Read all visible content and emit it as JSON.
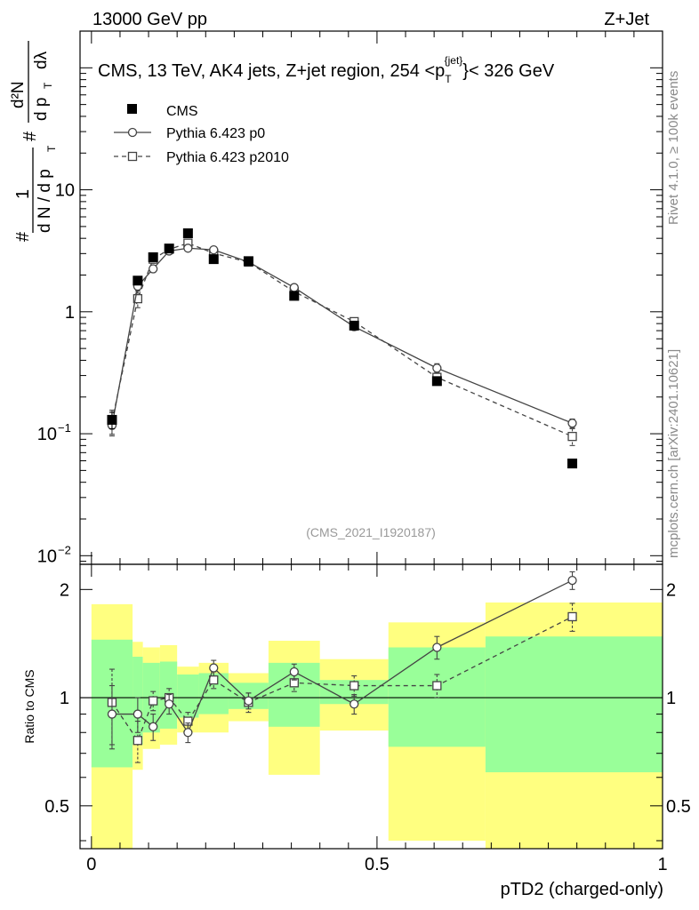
{
  "header": {
    "energy_label": "13000 GeV pp",
    "process_label": "Z+Jet"
  },
  "side_labels": {
    "rivet": "Rivet 4.1.0, ≥ 100k events",
    "source": "mcplots.cern.ch [arXiv:2401.10621]"
  },
  "chart_data": [
    {
      "type": "line",
      "panel": "main",
      "title": "CMS, 13 TeV, AK4 jets, Z+jet region, 254 <p_T^{jet}< 326 GeV",
      "title_parts": {
        "prefix": "CMS, 13 TeV, AK4 jets, Z+jet region, 254 <p",
        "sub": "T",
        "sup": "{jet}",
        "suffix": "}< 326 GeV"
      },
      "analysis_id": "(CMS_2021_I1920187)",
      "ylabel": "1/dN/dp_T  d²N/dp_T dλ",
      "ylabel_parts": {
        "hash": "#",
        "one": "1",
        "dn": "d N / d p",
        "t": "T",
        "d2n": "d²N",
        "dpt": "d p",
        "dl": "dλ"
      },
      "yscale": "log",
      "ylim": [
        0.0085,
        200
      ],
      "xlim": [
        -0.02,
        1.0
      ],
      "y_tick_labels": [
        {
          "value": 10,
          "label": "10"
        },
        {
          "value": 1,
          "label": "1"
        },
        {
          "value": 0.1,
          "base": "10",
          "exp": "−1"
        },
        {
          "value": 0.01,
          "base": "10",
          "exp": "−2"
        }
      ],
      "legend": {
        "placement": "top-left",
        "entries": [
          "CMS",
          "Pythia 6.423 p0",
          "Pythia 6.423 p2010"
        ]
      },
      "series": [
        {
          "name": "CMS",
          "style": "black-square",
          "x": [
            0.036,
            0.081,
            0.108,
            0.136,
            0.169,
            0.214,
            0.275,
            0.355,
            0.46,
            0.605,
            0.842
          ],
          "y": [
            0.13,
            1.8,
            2.8,
            3.3,
            4.4,
            2.7,
            2.6,
            1.35,
            0.77,
            0.27,
            0.057
          ],
          "yerr": [
            0.02,
            0.1,
            0.15,
            0.15,
            0.2,
            0.12,
            0.1,
            0.06,
            0.04,
            0.015,
            0.004
          ]
        },
        {
          "name": "Pythia 6.423 p0",
          "style": "solid-circle",
          "x": [
            0.036,
            0.081,
            0.108,
            0.136,
            0.169,
            0.214,
            0.275,
            0.355,
            0.46,
            0.605,
            0.842
          ],
          "y": [
            0.117,
            1.62,
            2.25,
            3.15,
            3.32,
            3.22,
            2.56,
            1.58,
            0.755,
            0.345,
            0.122
          ],
          "yerr": [
            0.018,
            0.2,
            0.15,
            0.2,
            0.15,
            0.15,
            0.1,
            0.08,
            0.05,
            0.03,
            0.01
          ]
        },
        {
          "name": "Pythia 6.423 p2010",
          "style": "dashed-square",
          "x": [
            0.036,
            0.081,
            0.108,
            0.136,
            0.169,
            0.214,
            0.275,
            0.355,
            0.46,
            0.605,
            0.842
          ],
          "y": [
            0.126,
            1.28,
            2.7,
            3.25,
            3.65,
            3.02,
            2.55,
            1.46,
            0.83,
            0.29,
            0.095
          ],
          "yerr": [
            0.03,
            0.2,
            0.2,
            0.2,
            0.2,
            0.15,
            0.12,
            0.08,
            0.06,
            0.03,
            0.015
          ]
        }
      ]
    },
    {
      "type": "line",
      "panel": "ratio",
      "xlabel": "pTD2 (charged-only)",
      "ylabel": "Ratio to CMS",
      "yscale": "log",
      "ylim": [
        0.38,
        2.35
      ],
      "xlim": [
        -0.02,
        1.0
      ],
      "x_tick_labels": [
        {
          "value": 0,
          "label": "0"
        },
        {
          "value": 0.5,
          "label": "0.5"
        },
        {
          "value": 1,
          "label": "1"
        }
      ],
      "y_tick_labels": [
        {
          "value": 2,
          "label": "2"
        },
        {
          "value": 1,
          "label": "1"
        },
        {
          "value": 0.5,
          "label": "0.5"
        }
      ],
      "uncertainty_bands": [
        {
          "x0": 0.0,
          "x1": 0.072,
          "inner": [
            0.64,
            1.45
          ],
          "outer": [
            0.36,
            1.82
          ]
        },
        {
          "x0": 0.072,
          "x1": 0.09,
          "inner": [
            0.74,
            1.3
          ],
          "outer": [
            0.63,
            1.43
          ]
        },
        {
          "x0": 0.09,
          "x1": 0.12,
          "inner": [
            0.8,
            1.25
          ],
          "outer": [
            0.72,
            1.38
          ]
        },
        {
          "x0": 0.12,
          "x1": 0.15,
          "inner": [
            0.82,
            1.26
          ],
          "outer": [
            0.74,
            1.4
          ]
        },
        {
          "x0": 0.15,
          "x1": 0.188,
          "inner": [
            0.88,
            1.16
          ],
          "outer": [
            0.8,
            1.22
          ]
        },
        {
          "x0": 0.188,
          "x1": 0.24,
          "inner": [
            0.9,
            1.17
          ],
          "outer": [
            0.8,
            1.25
          ]
        },
        {
          "x0": 0.24,
          "x1": 0.31,
          "inner": [
            0.93,
            1.1
          ],
          "outer": [
            0.86,
            1.17
          ]
        },
        {
          "x0": 0.31,
          "x1": 0.4,
          "inner": [
            0.83,
            1.25
          ],
          "outer": [
            0.61,
            1.44
          ]
        },
        {
          "x0": 0.4,
          "x1": 0.52,
          "inner": [
            0.96,
            1.12
          ],
          "outer": [
            0.81,
            1.28
          ]
        },
        {
          "x0": 0.52,
          "x1": 0.69,
          "inner": [
            0.73,
            1.38
          ],
          "outer": [
            0.4,
            1.62
          ]
        },
        {
          "x0": 0.69,
          "x1": 1.0,
          "inner": [
            0.62,
            1.48
          ],
          "outer": [
            0.36,
            1.84
          ]
        }
      ],
      "reference_line": 1,
      "series": [
        {
          "name": "Pythia 6.423 p0",
          "style": "solid-circle",
          "x": [
            0.036,
            0.081,
            0.108,
            0.136,
            0.169,
            0.214,
            0.275,
            0.355,
            0.46,
            0.605,
            0.842
          ],
          "y": [
            0.9,
            0.9,
            0.83,
            0.96,
            0.8,
            1.21,
            0.98,
            1.18,
            0.96,
            1.38,
            2.12
          ],
          "yerr": [
            0.18,
            0.1,
            0.07,
            0.06,
            0.05,
            0.06,
            0.05,
            0.06,
            0.06,
            0.1,
            0.12
          ]
        },
        {
          "name": "Pythia 6.423 p2010",
          "style": "dashed-square",
          "x": [
            0.036,
            0.081,
            0.108,
            0.136,
            0.169,
            0.214,
            0.275,
            0.355,
            0.46,
            0.605,
            0.842
          ],
          "y": [
            0.97,
            0.76,
            0.98,
            1.0,
            0.86,
            1.12,
            0.97,
            1.1,
            1.08,
            1.08,
            1.68
          ],
          "yerr": [
            0.23,
            0.1,
            0.06,
            0.06,
            0.05,
            0.06,
            0.06,
            0.06,
            0.07,
            0.08,
            0.15
          ]
        }
      ]
    }
  ]
}
